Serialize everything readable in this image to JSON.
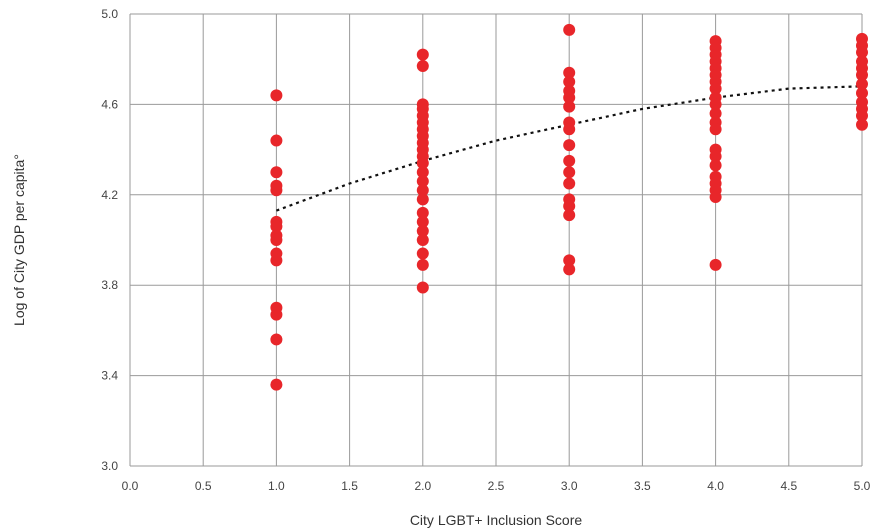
{
  "chart_data": {
    "type": "scatter",
    "xlabel": "City LGBT+ Inclusion Score",
    "ylabel": "Log of City GDP per capita°",
    "xlim": [
      0,
      5
    ],
    "ylim": [
      3.0,
      5.0
    ],
    "x_ticks": [
      "0.0",
      "0.5",
      "1.0",
      "1.5",
      "2.0",
      "2.5",
      "3.0",
      "3.5",
      "4.0",
      "4.5",
      "5.0"
    ],
    "y_ticks": [
      "3.0",
      "3.4",
      "3.8",
      "4.2",
      "4.6",
      "5.0"
    ],
    "x_tick_values": [
      0,
      0.5,
      1,
      1.5,
      2,
      2.5,
      3,
      3.5,
      4,
      4.5,
      5
    ],
    "y_tick_values": [
      3.0,
      3.4,
      3.8,
      4.2,
      4.6,
      5.0
    ],
    "grid": true,
    "point_color": "#e8262a",
    "trend_color": "#111111",
    "series": [
      {
        "points": [
          [
            1,
            4.64
          ],
          [
            1,
            4.44
          ],
          [
            1,
            4.3
          ],
          [
            1,
            4.24
          ],
          [
            1,
            4.22
          ],
          [
            1,
            4.08
          ],
          [
            1,
            4.06
          ],
          [
            1,
            4.02
          ],
          [
            1,
            4.0
          ],
          [
            1,
            3.94
          ],
          [
            1,
            3.91
          ],
          [
            1,
            3.7
          ],
          [
            1,
            3.67
          ],
          [
            1,
            3.56
          ],
          [
            1,
            3.36
          ],
          [
            2,
            4.82
          ],
          [
            2,
            4.77
          ],
          [
            2,
            4.6
          ],
          [
            2,
            4.58
          ],
          [
            2,
            4.55
          ],
          [
            2,
            4.52
          ],
          [
            2,
            4.49
          ],
          [
            2,
            4.46
          ],
          [
            2,
            4.43
          ],
          [
            2,
            4.4
          ],
          [
            2,
            4.37
          ],
          [
            2,
            4.34
          ],
          [
            2,
            4.3
          ],
          [
            2,
            4.26
          ],
          [
            2,
            4.22
          ],
          [
            2,
            4.18
          ],
          [
            2,
            4.12
          ],
          [
            2,
            4.08
          ],
          [
            2,
            4.04
          ],
          [
            2,
            4.0
          ],
          [
            2,
            3.94
          ],
          [
            2,
            3.89
          ],
          [
            2,
            3.79
          ],
          [
            3,
            4.93
          ],
          [
            3,
            4.74
          ],
          [
            3,
            4.7
          ],
          [
            3,
            4.66
          ],
          [
            3,
            4.63
          ],
          [
            3,
            4.59
          ],
          [
            3,
            4.52
          ],
          [
            3,
            4.49
          ],
          [
            3,
            4.42
          ],
          [
            3,
            4.35
          ],
          [
            3,
            4.3
          ],
          [
            3,
            4.25
          ],
          [
            3,
            4.18
          ],
          [
            3,
            4.15
          ],
          [
            3,
            4.11
          ],
          [
            3,
            3.91
          ],
          [
            3,
            3.87
          ],
          [
            4,
            4.88
          ],
          [
            4,
            4.85
          ],
          [
            4,
            4.82
          ],
          [
            4,
            4.79
          ],
          [
            4,
            4.76
          ],
          [
            4,
            4.73
          ],
          [
            4,
            4.7
          ],
          [
            4,
            4.67
          ],
          [
            4,
            4.63
          ],
          [
            4,
            4.6
          ],
          [
            4,
            4.56
          ],
          [
            4,
            4.52
          ],
          [
            4,
            4.49
          ],
          [
            4,
            4.4
          ],
          [
            4,
            4.37
          ],
          [
            4,
            4.33
          ],
          [
            4,
            4.28
          ],
          [
            4,
            4.25
          ],
          [
            4,
            4.22
          ],
          [
            4,
            4.19
          ],
          [
            4,
            3.89
          ],
          [
            5,
            4.89
          ],
          [
            5,
            4.86
          ],
          [
            5,
            4.83
          ],
          [
            5,
            4.79
          ],
          [
            5,
            4.76
          ],
          [
            5,
            4.73
          ],
          [
            5,
            4.69
          ],
          [
            5,
            4.65
          ],
          [
            5,
            4.61
          ],
          [
            5,
            4.58
          ],
          [
            5,
            4.55
          ],
          [
            5,
            4.51
          ]
        ]
      }
    ],
    "trendline": {
      "style": "dotted",
      "points": [
        [
          1,
          4.13
        ],
        [
          1.5,
          4.25
        ],
        [
          2,
          4.35
        ],
        [
          2.5,
          4.44
        ],
        [
          3,
          4.51
        ],
        [
          3.5,
          4.58
        ],
        [
          4,
          4.63
        ],
        [
          4.5,
          4.67
        ],
        [
          5,
          4.68
        ]
      ]
    }
  }
}
